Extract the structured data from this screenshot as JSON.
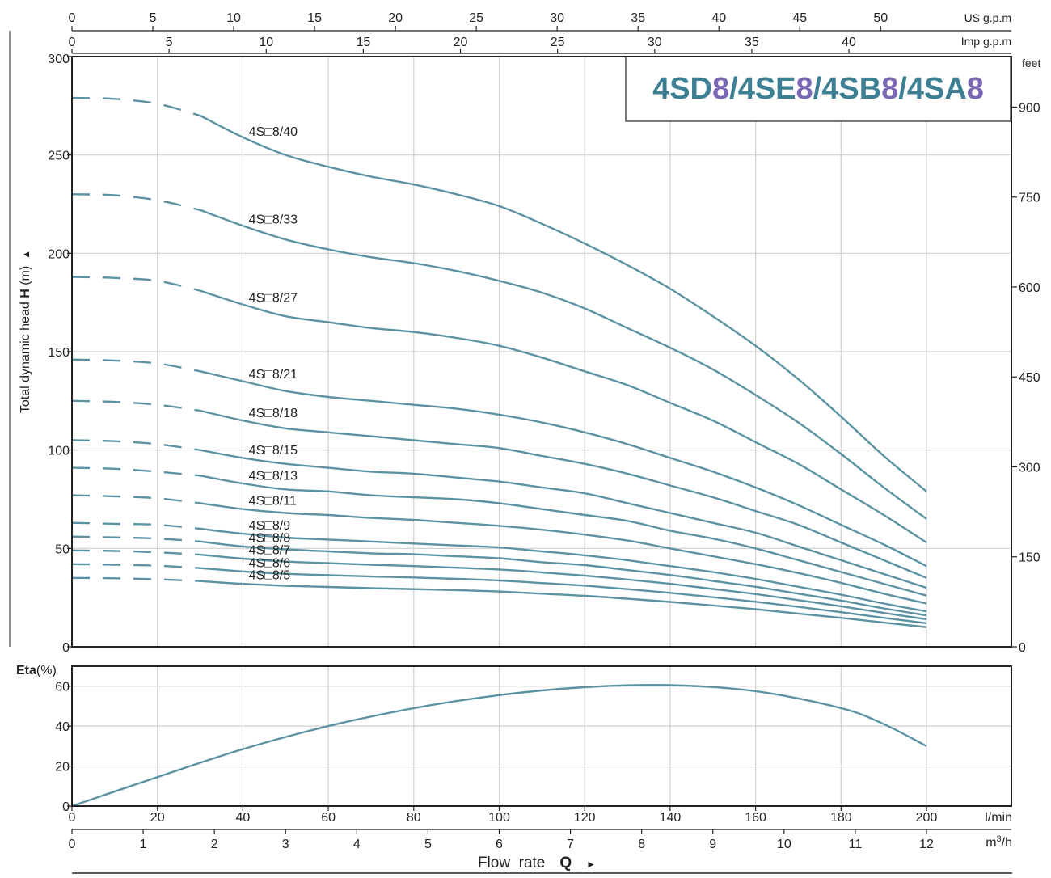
{
  "header": {
    "model_parts": [
      {
        "text": "4SD",
        "color": "#3d7f95"
      },
      {
        "text": "8",
        "color": "#7b68b4"
      },
      {
        "text": "/4SE",
        "color": "#3d7f95"
      },
      {
        "text": "8",
        "color": "#7b68b4"
      },
      {
        "text": "/4SB",
        "color": "#3d7f95"
      },
      {
        "text": "8",
        "color": "#7b68b4"
      },
      {
        "text": "/4SA",
        "color": "#3d7f95"
      },
      {
        "text": "8",
        "color": "#7b68b4"
      }
    ]
  },
  "axes": {
    "us_gpm": {
      "label": "US g.p.m",
      "ticks": [
        0,
        5,
        10,
        15,
        20,
        25,
        30,
        35,
        40,
        45,
        50
      ]
    },
    "imp_gpm": {
      "label": "Imp g.p.m",
      "ticks": [
        0,
        5,
        10,
        15,
        20,
        25,
        30,
        35,
        40
      ]
    },
    "head_m": {
      "label_prefix": "Total dynamic head ",
      "label_bold": "H",
      "label_suffix": " (m)",
      "arrow": "▲",
      "ticks": [
        0,
        50,
        100,
        150,
        200,
        250,
        300
      ]
    },
    "head_ft": {
      "label": "feet",
      "ticks": [
        0,
        150,
        300,
        450,
        600,
        750,
        900
      ]
    },
    "eta": {
      "label_bold": "Eta",
      "label_suffix": "(%)",
      "ticks": [
        0,
        20,
        40,
        60
      ]
    },
    "lmin": {
      "label": "l/min",
      "ticks": [
        0,
        20,
        40,
        60,
        80,
        100,
        120,
        140,
        160,
        180,
        200
      ]
    },
    "m3h": {
      "label_base": "m",
      "label_sup": "3",
      "label_tail": "/h",
      "ticks": [
        0,
        1,
        2,
        3,
        4,
        5,
        6,
        7,
        8,
        9,
        10,
        11,
        12
      ]
    },
    "flow": {
      "label": "Flow  rate",
      "label_bold": "Q",
      "arrow": "►"
    }
  },
  "chart_data": [
    {
      "type": "line",
      "title": "4SD8/4SE8/4SB8/4SA8",
      "xlabel": "Flow rate Q (l/min)",
      "ylabel": "Total dynamic head H (m)",
      "xlim": [
        0,
        220
      ],
      "ylim": [
        0,
        300
      ],
      "secondary_y": {
        "label": "feet",
        "ticks": [
          0,
          150,
          300,
          450,
          600,
          750,
          900
        ]
      },
      "x": [
        0,
        10,
        20,
        30,
        40,
        50,
        60,
        70,
        80,
        90,
        100,
        110,
        120,
        130,
        140,
        150,
        160,
        170,
        180,
        190,
        200
      ],
      "dashed_until_x": 30,
      "series": [
        {
          "name": "4S□8/40",
          "values": [
            279,
            278.5,
            276,
            270,
            259,
            250,
            244,
            239,
            235,
            230,
            224,
            215,
            205,
            194,
            182,
            168,
            153,
            136,
            117,
            97,
            79
          ]
        },
        {
          "name": "4S□8/33",
          "values": [
            230,
            229.5,
            227,
            222,
            214,
            207,
            202,
            198,
            195,
            191,
            186,
            180,
            172,
            162,
            152,
            141,
            128,
            114,
            98,
            81,
            65
          ]
        },
        {
          "name": "4S□8/27",
          "values": [
            188,
            187.5,
            186,
            181,
            174,
            168,
            165,
            162,
            160,
            157,
            153,
            147,
            140,
            133,
            124,
            115,
            104,
            93,
            80,
            67,
            53
          ]
        },
        {
          "name": "4S□8/21",
          "values": [
            146,
            145.5,
            144,
            140,
            135,
            130,
            127,
            125,
            123,
            121,
            118,
            114,
            109,
            103,
            96,
            89,
            81,
            72,
            62,
            52,
            41
          ]
        },
        {
          "name": "4S□8/18",
          "values": [
            125,
            124.5,
            123,
            120,
            115,
            111,
            109,
            107,
            105,
            103,
            101,
            97,
            93,
            88,
            82,
            76,
            69,
            62,
            53,
            44,
            35
          ]
        },
        {
          "name": "4S□8/15",
          "values": [
            105,
            104.5,
            103,
            100,
            96,
            93,
            91,
            89,
            88,
            86,
            84,
            81,
            78,
            73,
            68,
            63,
            58,
            51,
            44,
            37,
            30
          ]
        },
        {
          "name": "4S□8/13",
          "values": [
            91,
            90.5,
            89,
            87,
            83,
            80,
            79,
            77,
            76,
            75,
            73,
            70,
            67,
            64,
            59,
            55,
            50,
            44,
            38,
            32,
            26
          ]
        },
        {
          "name": "4S□8/11",
          "values": [
            77,
            76.5,
            75.5,
            73,
            70,
            68,
            67,
            65.5,
            64.5,
            63,
            61.5,
            59.5,
            57,
            54,
            50,
            46,
            42,
            37.5,
            32.5,
            27,
            22
          ]
        },
        {
          "name": "4S□8/9",
          "values": [
            63,
            62.5,
            62,
            60,
            57.5,
            55.5,
            54.5,
            53.5,
            52.5,
            51.5,
            50.5,
            48.5,
            46.5,
            44,
            41,
            38,
            34.5,
            30.5,
            26.5,
            22,
            18
          ]
        },
        {
          "name": "4S□8/8",
          "values": [
            56,
            55.6,
            55,
            53.5,
            51,
            49.5,
            48.5,
            47.5,
            47,
            46,
            45,
            43,
            41.5,
            39,
            36.5,
            33.5,
            30.5,
            27,
            23.5,
            19.5,
            16
          ]
        },
        {
          "name": "4S□8/7",
          "values": [
            49,
            48.7,
            48,
            46.8,
            44.8,
            43.3,
            42.5,
            41.7,
            41,
            40.2,
            39.3,
            37.8,
            36.2,
            34.2,
            32,
            29.4,
            26.8,
            23.7,
            20.6,
            17.2,
            14
          ]
        },
        {
          "name": "4S□8/6",
          "values": [
            42,
            41.7,
            41.2,
            40,
            38.3,
            37.1,
            36.4,
            35.7,
            35.2,
            34.5,
            33.7,
            32.4,
            31.1,
            29.3,
            27.4,
            25.2,
            22.9,
            20.3,
            17.6,
            14.7,
            12
          ]
        },
        {
          "name": "4S□8/5",
          "values": [
            35,
            34.8,
            34.3,
            33.4,
            32,
            31,
            30.4,
            29.8,
            29.3,
            28.8,
            28.1,
            27,
            25.9,
            24.4,
            22.8,
            21,
            19.1,
            16.9,
            14.7,
            12.3,
            10
          ]
        }
      ]
    },
    {
      "type": "line",
      "xlabel": "Flow rate Q (l/min)",
      "ylabel": "Eta(%)",
      "xlim": [
        0,
        220
      ],
      "ylim": [
        0,
        70
      ],
      "x": [
        0,
        20,
        40,
        60,
        80,
        100,
        120,
        140,
        160,
        180,
        190,
        200
      ],
      "values": [
        0,
        14.5,
        28.5,
        40,
        49,
        55.5,
        59.5,
        60.5,
        57.5,
        49,
        41,
        30
      ]
    }
  ]
}
